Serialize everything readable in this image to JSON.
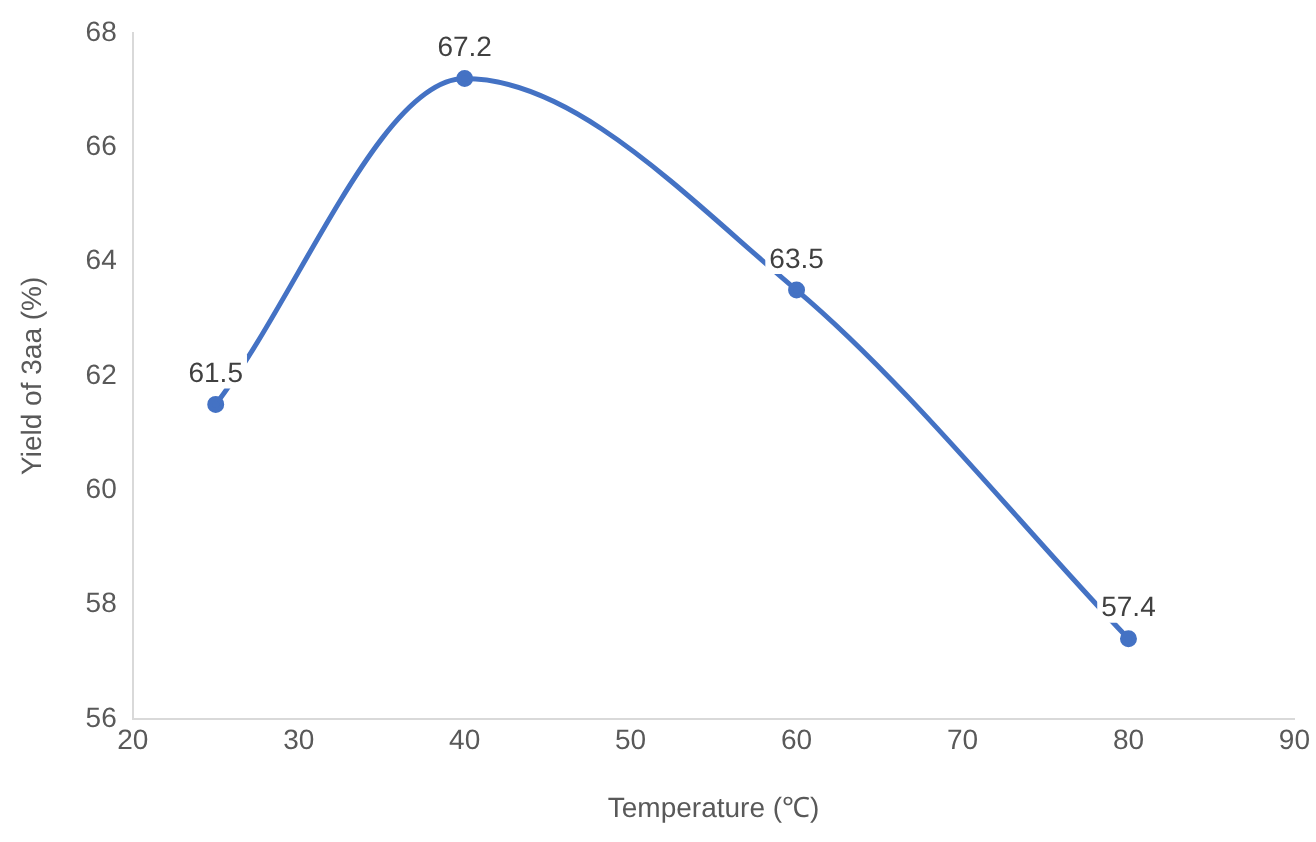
{
  "chart_data": {
    "type": "line",
    "xlabel": "Temperature (℃)",
    "ylabel": "Yield of 3aa (%)",
    "x": [
      25,
      40,
      60,
      80
    ],
    "series": [
      {
        "color": "#4472c4",
        "values": [
          61.5,
          67.2,
          63.5,
          57.4
        ]
      }
    ],
    "xlim": [
      20,
      90
    ],
    "xticks": [
      20,
      30,
      40,
      50,
      60,
      70,
      80,
      90
    ],
    "ylim": [
      56,
      68
    ],
    "yticks": [
      56,
      58,
      60,
      62,
      64,
      66,
      68
    ],
    "grid": false,
    "legend": false,
    "marker": "circle",
    "line_style": "solid",
    "data_labels": true
  }
}
